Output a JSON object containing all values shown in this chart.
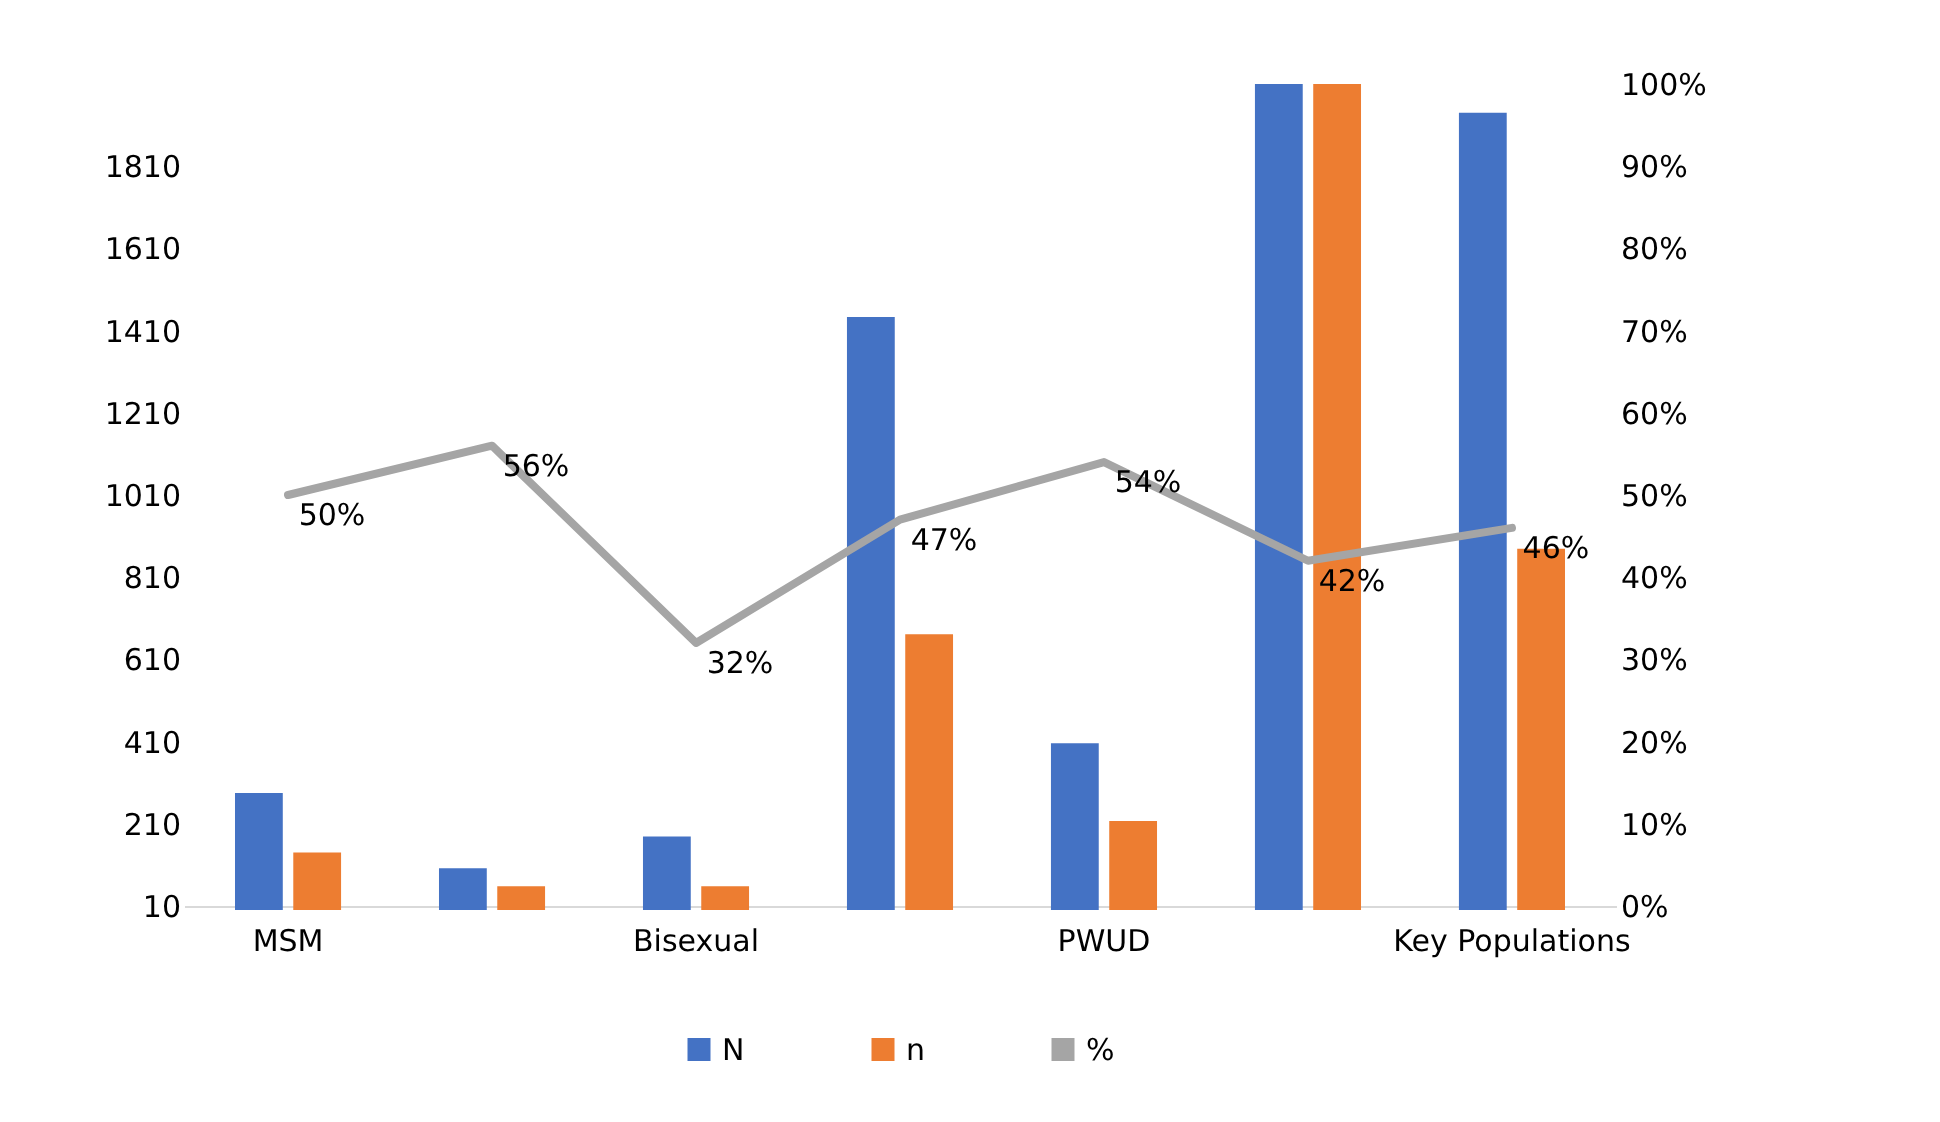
{
  "chart_data": {
    "type": "bar",
    "categories": [
      "MSM",
      null,
      "Bisexual",
      null,
      "PWUD",
      null,
      "Key Populations"
    ],
    "series": [
      {
        "name": "N",
        "color": "#4472c4",
        "values": [
          285,
          102,
          179,
          1443,
          406,
          2010,
          1940
        ]
      },
      {
        "name": "n",
        "color": "#ed7d31",
        "values": [
          140,
          58,
          58,
          671,
          217,
          2010,
          879
        ]
      },
      {
        "name": "%",
        "type": "line",
        "axis": "y2",
        "color": "#a5a5a5",
        "values": [
          50,
          56,
          32,
          47,
          54,
          42,
          46
        ],
        "value_labels": [
          "50%",
          "56%",
          "32%",
          "47%",
          "54%",
          "42%",
          "46%"
        ]
      }
    ],
    "ylim": [
      10,
      2010
    ],
    "yticks": [
      10,
      210,
      410,
      610,
      810,
      1010,
      1210,
      1410,
      1610,
      1810
    ],
    "y2lim": [
      0,
      100
    ],
    "y2ticks": [
      {
        "value": 0,
        "label": "0%"
      },
      {
        "value": 10,
        "label": "10%"
      },
      {
        "value": 20,
        "label": "20%"
      },
      {
        "value": 30,
        "label": "30%"
      },
      {
        "value": 40,
        "label": "40%"
      },
      {
        "value": 50,
        "label": "50%"
      },
      {
        "value": 60,
        "label": "60%"
      },
      {
        "value": 70,
        "label": "70%"
      },
      {
        "value": 80,
        "label": "80%"
      },
      {
        "value": 90,
        "label": "90%"
      },
      {
        "value": 100,
        "label": "100%"
      }
    ],
    "legend": "bottom"
  }
}
